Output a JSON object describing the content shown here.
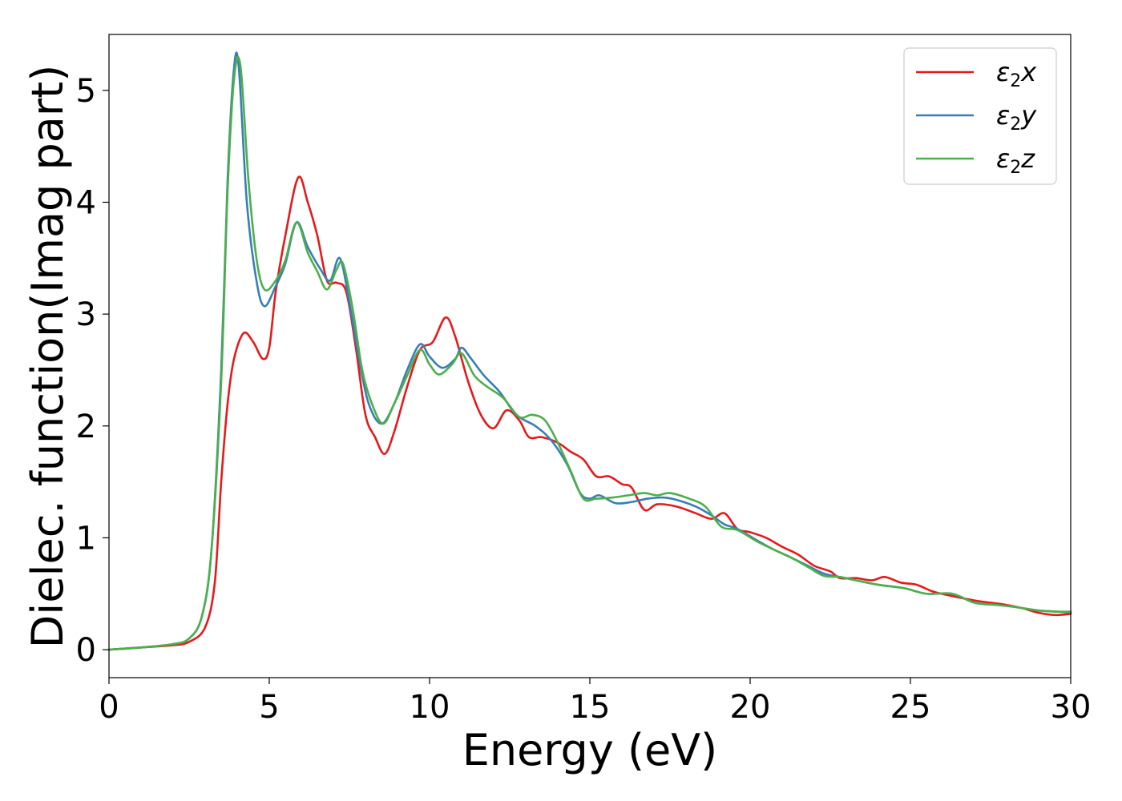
{
  "chart_data": {
    "type": "line",
    "title": "",
    "xlabel": "Energy (eV)",
    "ylabel": "Dielec. function(Imag part)",
    "xlim": [
      0,
      30
    ],
    "ylim": [
      -0.25,
      5.5
    ],
    "xticks": [
      0,
      5,
      10,
      15,
      20,
      25,
      30
    ],
    "xtick_labels": [
      "0",
      "5",
      "10",
      "15",
      "20",
      "25",
      "30"
    ],
    "yticks": [
      0,
      1,
      2,
      3,
      4,
      5
    ],
    "ytick_labels": [
      "0",
      "1",
      "2",
      "3",
      "4",
      "5"
    ],
    "grid": false,
    "legend_position": "top-right",
    "series": [
      {
        "name": "ε2x",
        "legend_base": "ε",
        "legend_sub": "2",
        "legend_suffix": "x",
        "color": "#e41a1c",
        "points": [
          [
            0,
            0
          ],
          [
            1,
            0.02
          ],
          [
            2,
            0.04
          ],
          [
            2.5,
            0.07
          ],
          [
            3,
            0.2
          ],
          [
            3.3,
            0.6
          ],
          [
            3.5,
            1.5
          ],
          [
            3.7,
            2.2
          ],
          [
            3.9,
            2.6
          ],
          [
            4.2,
            2.83
          ],
          [
            4.5,
            2.75
          ],
          [
            4.8,
            2.6
          ],
          [
            5.0,
            2.7
          ],
          [
            5.2,
            3.2
          ],
          [
            5.5,
            3.7
          ],
          [
            5.9,
            4.22
          ],
          [
            6.2,
            4.0
          ],
          [
            6.5,
            3.7
          ],
          [
            6.8,
            3.3
          ],
          [
            7.1,
            3.28
          ],
          [
            7.4,
            3.2
          ],
          [
            7.7,
            2.7
          ],
          [
            8.0,
            2.1
          ],
          [
            8.3,
            1.9
          ],
          [
            8.6,
            1.75
          ],
          [
            8.9,
            1.95
          ],
          [
            9.3,
            2.35
          ],
          [
            9.7,
            2.68
          ],
          [
            10.1,
            2.75
          ],
          [
            10.5,
            2.97
          ],
          [
            10.8,
            2.8
          ],
          [
            11.2,
            2.4
          ],
          [
            11.6,
            2.1
          ],
          [
            12.0,
            1.98
          ],
          [
            12.4,
            2.14
          ],
          [
            12.8,
            2.05
          ],
          [
            13.1,
            1.9
          ],
          [
            13.5,
            1.9
          ],
          [
            14.0,
            1.85
          ],
          [
            14.4,
            1.77
          ],
          [
            14.8,
            1.7
          ],
          [
            15.2,
            1.55
          ],
          [
            15.6,
            1.55
          ],
          [
            16.0,
            1.48
          ],
          [
            16.3,
            1.45
          ],
          [
            16.7,
            1.25
          ],
          [
            17.1,
            1.3
          ],
          [
            17.7,
            1.28
          ],
          [
            18.3,
            1.22
          ],
          [
            18.8,
            1.17
          ],
          [
            19.2,
            1.22
          ],
          [
            19.6,
            1.08
          ],
          [
            20.0,
            1.05
          ],
          [
            20.5,
            1.0
          ],
          [
            21.0,
            0.92
          ],
          [
            21.5,
            0.85
          ],
          [
            22.0,
            0.75
          ],
          [
            22.5,
            0.7
          ],
          [
            22.8,
            0.64
          ],
          [
            23.3,
            0.64
          ],
          [
            23.8,
            0.62
          ],
          [
            24.2,
            0.65
          ],
          [
            24.7,
            0.6
          ],
          [
            25.2,
            0.58
          ],
          [
            25.7,
            0.52
          ],
          [
            26.3,
            0.48
          ],
          [
            27.0,
            0.44
          ],
          [
            27.5,
            0.42
          ],
          [
            28.0,
            0.4
          ],
          [
            28.5,
            0.37
          ],
          [
            29.0,
            0.33
          ],
          [
            29.5,
            0.31
          ],
          [
            30.0,
            0.32
          ]
        ]
      },
      {
        "name": "ε2y",
        "legend_base": "ε",
        "legend_sub": "2",
        "legend_suffix": "y",
        "color": "#377eb8",
        "points": [
          [
            0,
            0
          ],
          [
            1,
            0.02
          ],
          [
            2,
            0.05
          ],
          [
            2.5,
            0.1
          ],
          [
            2.9,
            0.3
          ],
          [
            3.2,
            0.9
          ],
          [
            3.5,
            2.5
          ],
          [
            3.7,
            4.2
          ],
          [
            3.9,
            5.2
          ],
          [
            4.05,
            5.2
          ],
          [
            4.3,
            4.0
          ],
          [
            4.6,
            3.3
          ],
          [
            4.85,
            3.07
          ],
          [
            5.2,
            3.25
          ],
          [
            5.5,
            3.45
          ],
          [
            5.85,
            3.82
          ],
          [
            6.2,
            3.6
          ],
          [
            6.6,
            3.4
          ],
          [
            6.9,
            3.3
          ],
          [
            7.2,
            3.5
          ],
          [
            7.5,
            3.1
          ],
          [
            7.8,
            2.6
          ],
          [
            8.1,
            2.2
          ],
          [
            8.5,
            2.02
          ],
          [
            8.9,
            2.2
          ],
          [
            9.3,
            2.5
          ],
          [
            9.7,
            2.73
          ],
          [
            10.0,
            2.62
          ],
          [
            10.4,
            2.52
          ],
          [
            10.8,
            2.6
          ],
          [
            11.0,
            2.7
          ],
          [
            11.3,
            2.6
          ],
          [
            11.7,
            2.45
          ],
          [
            12.2,
            2.3
          ],
          [
            12.7,
            2.1
          ],
          [
            13.3,
            2.0
          ],
          [
            13.8,
            1.87
          ],
          [
            14.3,
            1.65
          ],
          [
            14.7,
            1.4
          ],
          [
            15.0,
            1.35
          ],
          [
            15.3,
            1.38
          ],
          [
            15.8,
            1.31
          ],
          [
            16.3,
            1.32
          ],
          [
            16.8,
            1.35
          ],
          [
            17.3,
            1.36
          ],
          [
            17.7,
            1.34
          ],
          [
            18.3,
            1.28
          ],
          [
            18.8,
            1.2
          ],
          [
            19.2,
            1.12
          ],
          [
            19.6,
            1.08
          ],
          [
            20.2,
            0.98
          ],
          [
            20.7,
            0.9
          ],
          [
            21.3,
            0.82
          ],
          [
            21.8,
            0.75
          ],
          [
            22.3,
            0.68
          ],
          [
            22.8,
            0.65
          ],
          [
            23.3,
            0.62
          ],
          [
            24.0,
            0.58
          ],
          [
            24.8,
            0.55
          ],
          [
            25.5,
            0.5
          ],
          [
            26.3,
            0.5
          ],
          [
            27.0,
            0.42
          ],
          [
            27.7,
            0.4
          ],
          [
            28.3,
            0.38
          ],
          [
            29.0,
            0.35
          ],
          [
            29.6,
            0.34
          ],
          [
            30.0,
            0.33
          ]
        ]
      },
      {
        "name": "ε2z",
        "legend_base": "ε",
        "legend_sub": "2",
        "legend_suffix": "z",
        "color": "#4daf4a",
        "points": [
          [
            0,
            0
          ],
          [
            1,
            0.02
          ],
          [
            2,
            0.05
          ],
          [
            2.5,
            0.1
          ],
          [
            2.9,
            0.3
          ],
          [
            3.2,
            0.9
          ],
          [
            3.5,
            2.4
          ],
          [
            3.7,
            4.1
          ],
          [
            3.9,
            5.1
          ],
          [
            4.1,
            5.22
          ],
          [
            4.35,
            4.2
          ],
          [
            4.6,
            3.5
          ],
          [
            4.85,
            3.22
          ],
          [
            5.2,
            3.3
          ],
          [
            5.5,
            3.48
          ],
          [
            5.85,
            3.82
          ],
          [
            6.2,
            3.55
          ],
          [
            6.5,
            3.38
          ],
          [
            6.8,
            3.22
          ],
          [
            7.1,
            3.4
          ],
          [
            7.3,
            3.45
          ],
          [
            7.6,
            3.05
          ],
          [
            7.9,
            2.5
          ],
          [
            8.2,
            2.2
          ],
          [
            8.55,
            2.02
          ],
          [
            8.9,
            2.2
          ],
          [
            9.3,
            2.45
          ],
          [
            9.7,
            2.68
          ],
          [
            10.0,
            2.55
          ],
          [
            10.3,
            2.46
          ],
          [
            10.7,
            2.55
          ],
          [
            11.0,
            2.65
          ],
          [
            11.4,
            2.45
          ],
          [
            11.8,
            2.35
          ],
          [
            12.3,
            2.25
          ],
          [
            12.8,
            2.08
          ],
          [
            13.2,
            2.1
          ],
          [
            13.6,
            2.05
          ],
          [
            14.0,
            1.85
          ],
          [
            14.4,
            1.6
          ],
          [
            14.8,
            1.35
          ],
          [
            15.2,
            1.35
          ],
          [
            15.7,
            1.36
          ],
          [
            16.2,
            1.38
          ],
          [
            16.7,
            1.4
          ],
          [
            17.1,
            1.38
          ],
          [
            17.5,
            1.4
          ],
          [
            18.1,
            1.35
          ],
          [
            18.6,
            1.28
          ],
          [
            19.1,
            1.1
          ],
          [
            19.6,
            1.07
          ],
          [
            20.2,
            0.97
          ],
          [
            20.7,
            0.9
          ],
          [
            21.3,
            0.82
          ],
          [
            21.8,
            0.74
          ],
          [
            22.3,
            0.66
          ],
          [
            22.8,
            0.65
          ],
          [
            23.3,
            0.62
          ],
          [
            24.0,
            0.58
          ],
          [
            24.8,
            0.55
          ],
          [
            25.5,
            0.5
          ],
          [
            26.3,
            0.5
          ],
          [
            27.0,
            0.42
          ],
          [
            27.7,
            0.4
          ],
          [
            28.3,
            0.38
          ],
          [
            29.0,
            0.35
          ],
          [
            29.6,
            0.34
          ],
          [
            30.0,
            0.34
          ]
        ]
      }
    ]
  }
}
